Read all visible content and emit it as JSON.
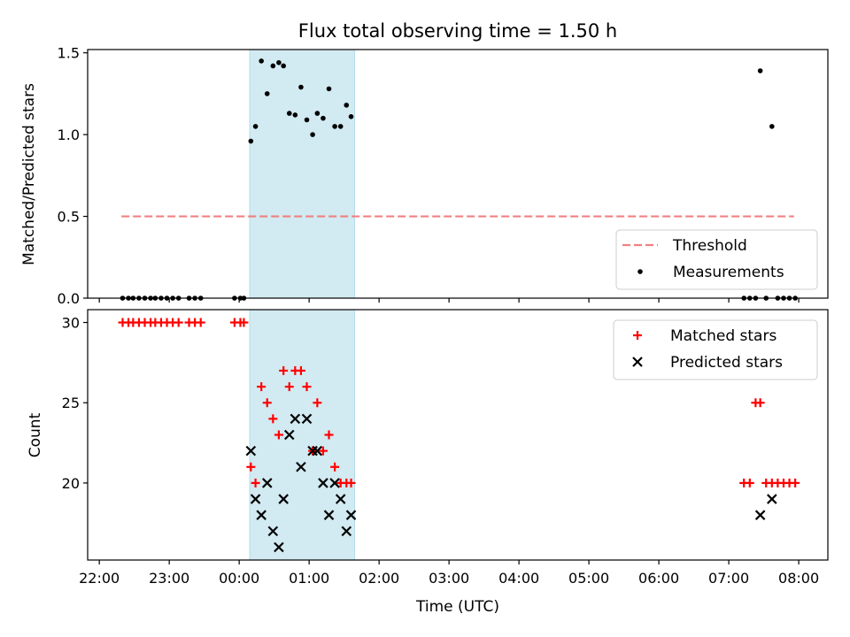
{
  "chart_data": [
    {
      "type": "scatter",
      "title": "Flux total observing time = 1.50 h",
      "xlabel": "",
      "ylabel": "Matched/Predicted stars",
      "xlim": [
        "21:50",
        "08:25"
      ],
      "ylim": [
        0,
        1.52
      ],
      "yticks": [
        "0.0",
        "0.5",
        "1.0",
        "1.5"
      ],
      "shaded_interval": {
        "start": "00:09",
        "end": "01:39",
        "color": "#add8e6"
      },
      "threshold": {
        "name": "Threshold",
        "value": 0.5,
        "x_start": "22:19",
        "x_end": "07:56",
        "color": "#f08080",
        "style": "dashed"
      },
      "legend": {
        "position": "lower-right",
        "entries": [
          "Threshold",
          "Measurements"
        ]
      },
      "series": [
        {
          "name": "Measurements",
          "color": "#000000",
          "marker": "dot",
          "points": [
            [
              "22:20",
              0
            ],
            [
              "22:25",
              0
            ],
            [
              "22:29",
              0
            ],
            [
              "22:34",
              0
            ],
            [
              "22:39",
              0
            ],
            [
              "22:44",
              0
            ],
            [
              "22:48",
              0
            ],
            [
              "22:53",
              0
            ],
            [
              "22:58",
              0
            ],
            [
              "23:03",
              0
            ],
            [
              "23:08",
              0
            ],
            [
              "23:17",
              0
            ],
            [
              "23:22",
              0
            ],
            [
              "23:27",
              0
            ],
            [
              "23:56",
              0
            ],
            [
              "00:01",
              0
            ],
            [
              "00:04",
              0
            ],
            [
              "00:10",
              0.96
            ],
            [
              "00:14",
              1.05
            ],
            [
              "00:19",
              1.45
            ],
            [
              "00:24",
              1.25
            ],
            [
              "00:29",
              1.42
            ],
            [
              "00:34",
              1.44
            ],
            [
              "00:38",
              1.42
            ],
            [
              "00:43",
              1.13
            ],
            [
              "00:48",
              1.12
            ],
            [
              "00:53",
              1.29
            ],
            [
              "00:58",
              1.09
            ],
            [
              "01:03",
              1.0
            ],
            [
              "01:07",
              1.13
            ],
            [
              "01:12",
              1.1
            ],
            [
              "01:17",
              1.28
            ],
            [
              "01:22",
              1.05
            ],
            [
              "01:27",
              1.05
            ],
            [
              "01:32",
              1.18
            ],
            [
              "01:36",
              1.11
            ],
            [
              "07:13",
              0
            ],
            [
              "07:18",
              0
            ],
            [
              "07:23",
              0
            ],
            [
              "07:27",
              1.39
            ],
            [
              "07:32",
              0
            ],
            [
              "07:37",
              1.05
            ],
            [
              "07:42",
              0
            ],
            [
              "07:47",
              0
            ],
            [
              "07:52",
              0
            ],
            [
              "07:57",
              0
            ]
          ]
        }
      ]
    },
    {
      "type": "scatter",
      "title": "",
      "xlabel": "Time (UTC)",
      "ylabel": "Count",
      "xlim": [
        "21:50",
        "08:25"
      ],
      "ylim": [
        15.2,
        30.8
      ],
      "yticks": [
        "20",
        "25",
        "30"
      ],
      "xticks": [
        "22:00",
        "23:00",
        "00:00",
        "01:00",
        "02:00",
        "03:00",
        "04:00",
        "05:00",
        "06:00",
        "07:00",
        "08:00"
      ],
      "shaded_interval": {
        "start": "00:09",
        "end": "01:39",
        "color": "#add8e6"
      },
      "legend": {
        "position": "top-right",
        "entries": [
          "Matched stars",
          "Predicted stars"
        ]
      },
      "series": [
        {
          "name": "Matched stars",
          "color": "#ff0000",
          "marker": "plus",
          "points": [
            [
              "22:20",
              30
            ],
            [
              "22:25",
              30
            ],
            [
              "22:29",
              30
            ],
            [
              "22:34",
              30
            ],
            [
              "22:39",
              30
            ],
            [
              "22:44",
              30
            ],
            [
              "22:48",
              30
            ],
            [
              "22:53",
              30
            ],
            [
              "22:58",
              30
            ],
            [
              "23:03",
              30
            ],
            [
              "23:08",
              30
            ],
            [
              "23:17",
              30
            ],
            [
              "23:22",
              30
            ],
            [
              "23:27",
              30
            ],
            [
              "23:56",
              30
            ],
            [
              "00:01",
              30
            ],
            [
              "00:04",
              30
            ],
            [
              "00:10",
              21
            ],
            [
              "00:14",
              20
            ],
            [
              "00:19",
              26
            ],
            [
              "00:24",
              25
            ],
            [
              "00:29",
              24
            ],
            [
              "00:34",
              23
            ],
            [
              "00:38",
              27
            ],
            [
              "00:43",
              26
            ],
            [
              "00:48",
              27
            ],
            [
              "00:53",
              27
            ],
            [
              "00:58",
              26
            ],
            [
              "01:03",
              22
            ],
            [
              "01:07",
              25
            ],
            [
              "01:12",
              22
            ],
            [
              "01:17",
              23
            ],
            [
              "01:22",
              21
            ],
            [
              "01:27",
              20
            ],
            [
              "01:32",
              20
            ],
            [
              "01:36",
              20
            ],
            [
              "07:13",
              20
            ],
            [
              "07:18",
              20
            ],
            [
              "07:23",
              25
            ],
            [
              "07:27",
              25
            ],
            [
              "07:32",
              20
            ],
            [
              "07:37",
              20
            ],
            [
              "07:42",
              20
            ],
            [
              "07:47",
              20
            ],
            [
              "07:52",
              20
            ],
            [
              "07:57",
              20
            ]
          ]
        },
        {
          "name": "Predicted stars",
          "color": "#000000",
          "marker": "x",
          "points": [
            [
              "00:10",
              22
            ],
            [
              "00:14",
              19
            ],
            [
              "00:19",
              18
            ],
            [
              "00:24",
              20
            ],
            [
              "00:29",
              17
            ],
            [
              "00:34",
              16
            ],
            [
              "00:38",
              19
            ],
            [
              "00:43",
              23
            ],
            [
              "00:48",
              24
            ],
            [
              "00:53",
              21
            ],
            [
              "00:58",
              24
            ],
            [
              "01:03",
              22
            ],
            [
              "01:07",
              22
            ],
            [
              "01:12",
              20
            ],
            [
              "01:17",
              18
            ],
            [
              "01:22",
              20
            ],
            [
              "01:27",
              19
            ],
            [
              "01:32",
              17
            ],
            [
              "01:36",
              18
            ],
            [
              "07:27",
              18
            ],
            [
              "07:37",
              19
            ]
          ]
        }
      ]
    }
  ]
}
